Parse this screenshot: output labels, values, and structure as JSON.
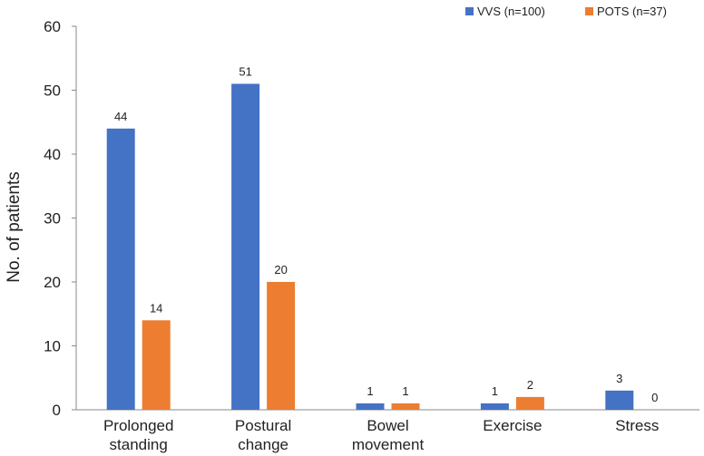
{
  "chart_data": {
    "type": "bar",
    "categories": [
      [
        "Prolonged",
        "standing"
      ],
      [
        "Postural",
        "change"
      ],
      [
        "Bowel",
        "movement"
      ],
      [
        "Exercise"
      ],
      [
        "Stress"
      ]
    ],
    "series": [
      {
        "name": "VVS (n=100)",
        "values": [
          44,
          51,
          1,
          1,
          3
        ],
        "color": "#4472C4"
      },
      {
        "name": "POTS (n=37)",
        "values": [
          14,
          20,
          1,
          2,
          0
        ],
        "color": "#ED7D31"
      }
    ],
    "title": "",
    "xlabel": "",
    "ylabel": "No. of patients",
    "ylim": [
      0,
      60
    ],
    "yticks": [
      0,
      10,
      20,
      30,
      40,
      50,
      60
    ],
    "grid": false,
    "legend": "top-right"
  }
}
